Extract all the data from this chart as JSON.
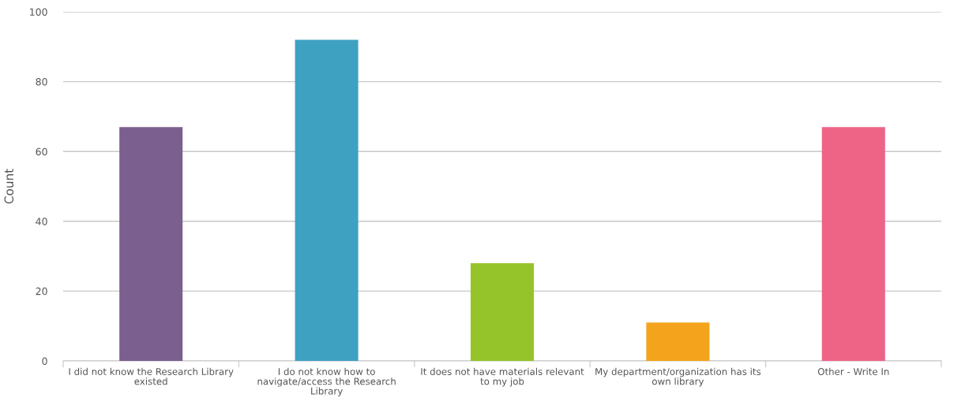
{
  "chart_data": {
    "type": "bar",
    "ylabel": "Count",
    "categories": [
      "I did not know the Research Library existed",
      "I do not know how to navigate/access the Research Library",
      "It does not have materials relevant to my job",
      "My department/organization has its own library",
      "Other - Write In"
    ],
    "values": [
      67,
      92,
      28,
      11,
      67
    ],
    "colors": [
      "#7b5f8e",
      "#3fa1c1",
      "#95c42a",
      "#f3a41c",
      "#ee6487"
    ],
    "ylim": [
      0,
      100
    ],
    "yticks": [
      0,
      20,
      40,
      60,
      80,
      100
    ],
    "grid": "y"
  }
}
